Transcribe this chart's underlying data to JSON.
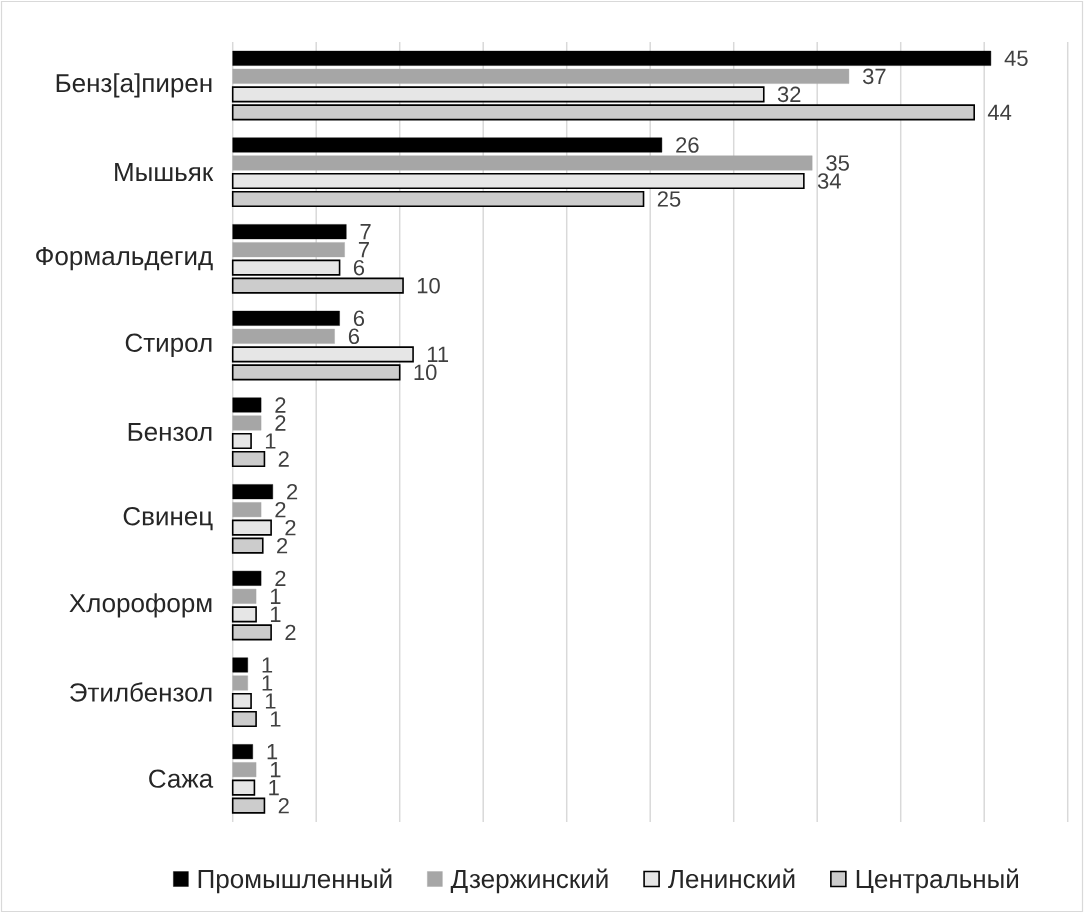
{
  "chart_data": {
    "type": "bar",
    "orientation": "horizontal",
    "categories": [
      "Бенз[а]пирен",
      "Мышьяк",
      "Формальдегид",
      "Стирол",
      "Бензол",
      "Свинец",
      "Хлороформ",
      "Этилбензол",
      "Сажа"
    ],
    "series": [
      {
        "name": "Промышленный",
        "color": "#000000",
        "values": [
          45.4,
          25.7,
          6.8,
          6.4,
          1.7,
          2.4,
          1.7,
          0.9,
          1.2
        ],
        "value_labels": [
          "45",
          "26",
          "7",
          "6",
          "2",
          "2",
          "2",
          "1",
          "1"
        ]
      },
      {
        "name": "Дзержинский",
        "color": "#a6a6a6",
        "values": [
          36.9,
          34.7,
          6.7,
          6.1,
          1.7,
          1.7,
          1.4,
          0.9,
          1.4
        ],
        "value_labels": [
          "37",
          "35",
          "7",
          "6",
          "2",
          "2",
          "1",
          "1",
          "1"
        ]
      },
      {
        "name": "Ленинский",
        "color": "#e6e6e6",
        "values": [
          31.8,
          34.2,
          6.4,
          10.8,
          1.1,
          2.3,
          1.4,
          1.1,
          1.3
        ],
        "value_labels": [
          "32",
          "34",
          "6",
          "11",
          "1",
          "2",
          "1",
          "1",
          "1"
        ]
      },
      {
        "name": "Центральный",
        "color": "#cccccc",
        "values": [
          44.4,
          24.6,
          10.2,
          10.0,
          1.9,
          1.8,
          2.3,
          1.4,
          1.9
        ],
        "value_labels": [
          "44",
          "25",
          "10",
          "10",
          "2",
          "2",
          "2",
          "1",
          "2"
        ]
      }
    ],
    "xlim": [
      0,
      50
    ],
    "xticks": [
      {
        "value": 0,
        "label": null
      },
      {
        "value": 5,
        "label": null
      },
      {
        "value": 10,
        "label": null
      },
      {
        "value": 15,
        "label": null
      },
      {
        "value": 20,
        "label": null
      },
      {
        "value": 25,
        "label": null
      },
      {
        "value": 30,
        "label": null
      },
      {
        "value": 35,
        "label": null
      },
      {
        "value": 40,
        "label": null
      },
      {
        "value": 45,
        "label": null
      },
      {
        "value": 50,
        "label": null
      }
    ],
    "grid": "x",
    "legend": "bottom",
    "tick_labels": "y"
  }
}
